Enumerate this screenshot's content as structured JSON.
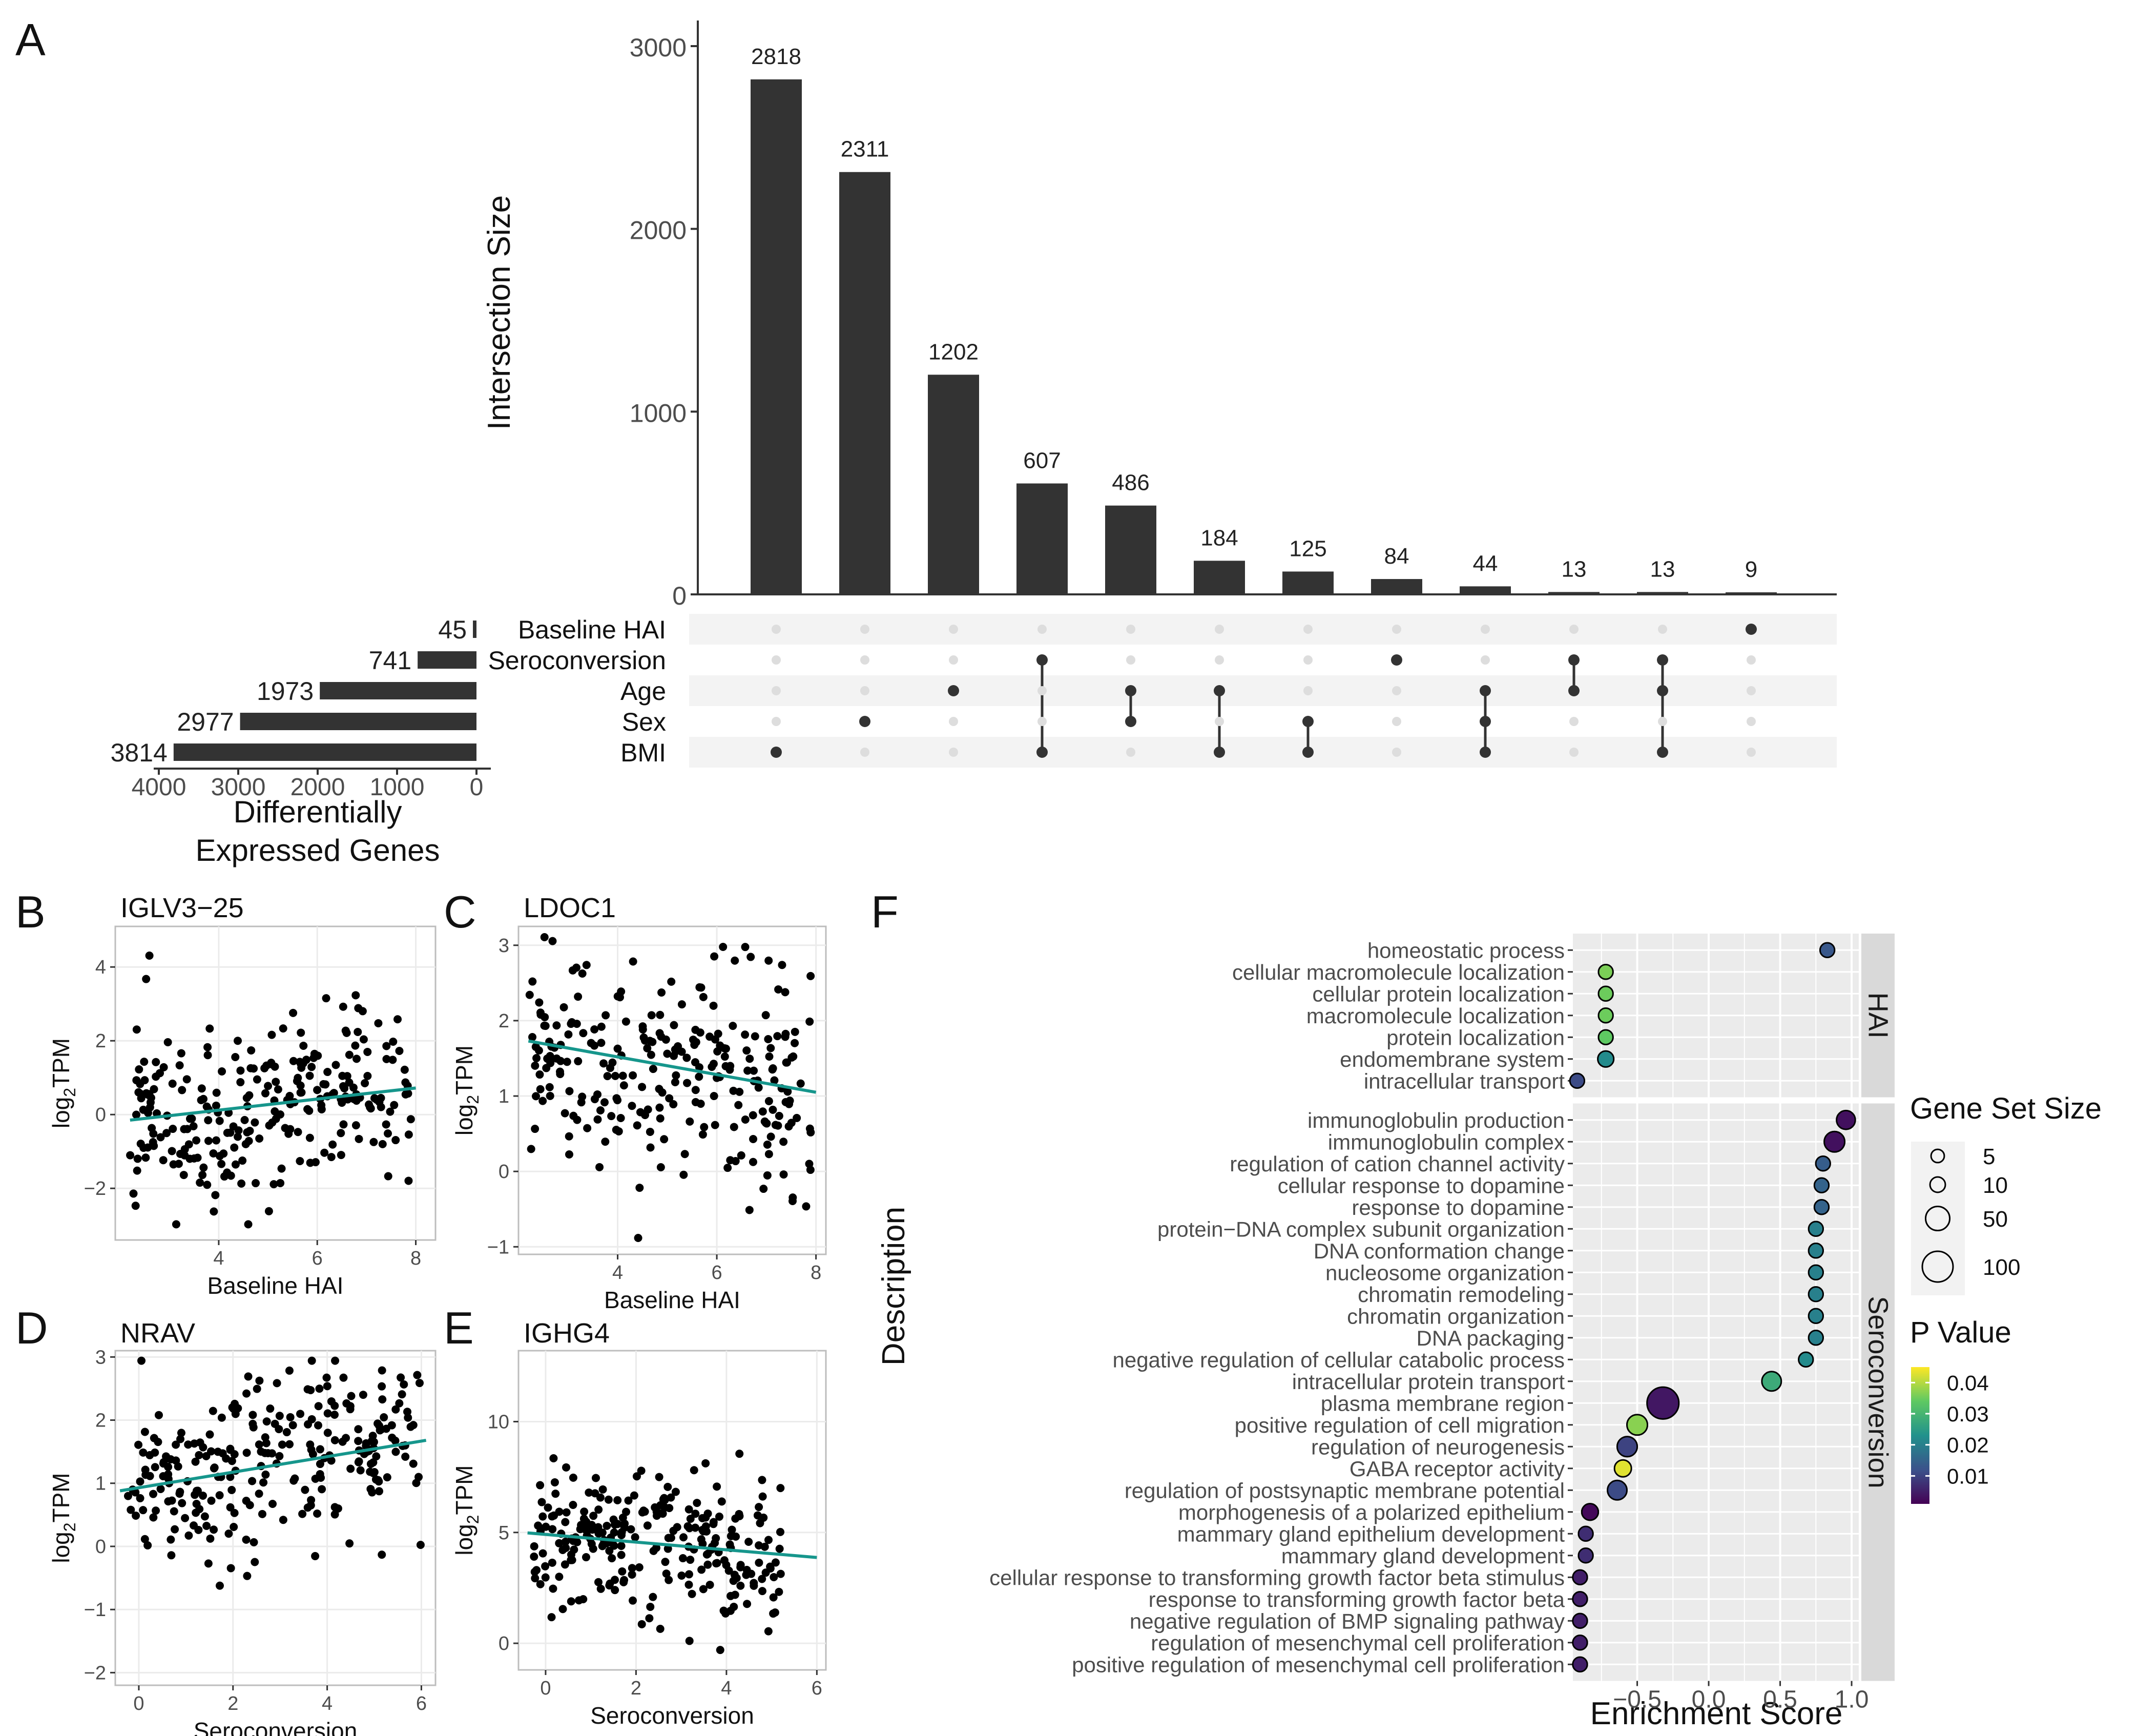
{
  "panels": {
    "a": "A",
    "b": "B",
    "c": "C",
    "d": "D",
    "e": "E",
    "f": "F"
  },
  "colors": {
    "bar": "#333333",
    "dot_active": "#333333",
    "dot_inactive": "#dddddd",
    "stripe": "#f3f3f3",
    "panel_bg": "#ebebeb",
    "strip_bg": "#d9d9d9",
    "grid": "#ffffff",
    "scatter_point": "#000000",
    "fit_line": "#16968c",
    "scatter_border": "#bdbdbd"
  },
  "chart_data": [
    {
      "id": "A",
      "type": "bar",
      "subtype": "upset",
      "ylabel": "Intersection Size",
      "ylim": [
        0,
        3200
      ],
      "yticks": [
        "0",
        "1000",
        "2000",
        "3000"
      ],
      "ytick_values": [
        0,
        1000,
        2000,
        3000
      ],
      "values": [
        2818,
        2311,
        1202,
        607,
        486,
        184,
        125,
        84,
        44,
        13,
        13,
        9
      ],
      "value_labels": [
        "2818",
        "2311",
        "1202",
        "607",
        "486",
        "184",
        "125",
        "84",
        "44",
        "13",
        "13",
        "9"
      ],
      "sets": [
        "Baseline HAI",
        "Seroconversion",
        "Age",
        "Sex",
        "BMI"
      ],
      "memberships": [
        [
          "BMI"
        ],
        [
          "Sex"
        ],
        [
          "Age"
        ],
        [
          "Seroconversion",
          "BMI"
        ],
        [
          "Age",
          "Sex"
        ],
        [
          "Age",
          "BMI"
        ],
        [
          "Sex",
          "BMI"
        ],
        [
          "Seroconversion"
        ],
        [
          "Age",
          "Sex",
          "BMI"
        ],
        [
          "Seroconversion",
          "Age"
        ],
        [
          "Seroconversion",
          "Age",
          "BMI"
        ],
        [
          "Baseline HAI"
        ]
      ],
      "set_sizes": [
        45,
        741,
        1973,
        2977,
        3814
      ],
      "set_size_labels": [
        "45",
        "741",
        "1973",
        "2977",
        "3814"
      ],
      "set_size_axis": {
        "xlim": [
          4000,
          0
        ],
        "ticks": [
          "4000",
          "3000",
          "2000",
          "1000",
          "0"
        ],
        "tick_values": [
          4000,
          3000,
          2000,
          1000,
          0
        ],
        "xlabel_line1": "Differentially",
        "xlabel_line2": "Expressed Genes"
      }
    },
    {
      "id": "B",
      "type": "scatter",
      "title": "IGLV3−25",
      "xlabel": "Baseline HAI",
      "ylabel_main": "log",
      "ylabel_sub": "2",
      "ylabel_tail": "TPM",
      "xlim": [
        1.9,
        8.4
      ],
      "ylim": [
        -3.4,
        5.1
      ],
      "xticks": [
        4,
        6,
        8
      ],
      "xtick_labels": [
        "4",
        "6",
        "8"
      ],
      "yticks": [
        -2,
        0,
        2,
        4
      ],
      "ytick_labels": [
        "−2",
        "0",
        "2",
        "4"
      ],
      "n_points": 260,
      "seed": 11,
      "gen": {
        "xmin": 2.2,
        "xmax": 7.9,
        "a": -0.55,
        "b": 0.16,
        "sd": 1.25
      },
      "fit": {
        "x": [
          2.2,
          8.0
        ],
        "y": [
          -0.15,
          0.72
        ]
      }
    },
    {
      "id": "C",
      "type": "scatter",
      "title": "LDOC1",
      "xlabel": "Baseline HAI",
      "ylabel_main": "log",
      "ylabel_sub": "2",
      "ylabel_tail": "TPM",
      "xlim": [
        2.0,
        8.2
      ],
      "ylim": [
        -1.1,
        3.25
      ],
      "xticks": [
        4,
        6,
        8
      ],
      "xtick_labels": [
        "4",
        "6",
        "8"
      ],
      "yticks": [
        -1,
        0,
        1,
        2,
        3
      ],
      "ytick_labels": [
        "−1",
        "0",
        "1",
        "2",
        "3"
      ],
      "n_points": 260,
      "seed": 23,
      "gen": {
        "xmin": 2.2,
        "xmax": 7.9,
        "a": 2.0,
        "b": -0.12,
        "sd": 0.68
      },
      "fit": {
        "x": [
          2.2,
          8.0
        ],
        "y": [
          1.73,
          1.05
        ]
      }
    },
    {
      "id": "D",
      "type": "scatter",
      "title": "NRAV",
      "xlabel": "Seroconversion",
      "ylabel_main": "log",
      "ylabel_sub": "2",
      "ylabel_tail": "TPM",
      "xlim": [
        -0.5,
        6.3
      ],
      "ylim": [
        -2.2,
        3.1
      ],
      "xticks": [
        0,
        2,
        4,
        6
      ],
      "xtick_labels": [
        "0",
        "2",
        "4",
        "6"
      ],
      "yticks": [
        -2,
        -1,
        0,
        1,
        2,
        3
      ],
      "ytick_labels": [
        "−2",
        "−1",
        "0",
        "1",
        "2",
        "3"
      ],
      "n_points": 260,
      "seed": 37,
      "gen": {
        "xmin": -0.3,
        "xmax": 6.0,
        "a": 0.9,
        "b": 0.13,
        "sd": 0.7
      },
      "fit": {
        "x": [
          -0.4,
          6.1
        ],
        "y": [
          0.88,
          1.68
        ]
      }
    },
    {
      "id": "E",
      "type": "scatter",
      "title": "IGHG4",
      "xlabel": "Seroconversion",
      "ylabel_main": "log",
      "ylabel_sub": "2",
      "ylabel_tail": "TPM",
      "xlim": [
        -0.6,
        6.2
      ],
      "ylim": [
        -1.2,
        13.2
      ],
      "xticks": [
        0,
        2,
        4,
        6
      ],
      "xtick_labels": [
        "0",
        "2",
        "4",
        "6"
      ],
      "yticks": [
        0,
        5,
        10
      ],
      "ytick_labels": [
        "0",
        "5",
        "10"
      ],
      "n_points": 260,
      "seed": 53,
      "gen": {
        "xmin": -0.3,
        "xmax": 5.2,
        "a": 4.9,
        "b": -0.17,
        "sd": 1.6
      },
      "fit": {
        "x": [
          -0.4,
          6.0
        ],
        "y": [
          4.98,
          3.87
        ]
      }
    },
    {
      "id": "F",
      "type": "scatter",
      "subtype": "dotplot",
      "xlabel": "Enrichment Score",
      "ylabel": "Description",
      "xlim": [
        -0.95,
        1.05
      ],
      "xticks": [
        -0.5,
        0.0,
        0.5,
        1.0
      ],
      "xtick_labels": [
        "−0.5",
        "0.0",
        "0.5",
        "1.0"
      ],
      "groups": [
        {
          "name": "HAI",
          "terms": [
            {
              "label": "homeostatic process",
              "score": 0.83,
              "p": 0.013,
              "size": 8
            },
            {
              "label": "cellular macromolecule localization",
              "score": -0.72,
              "p": 0.036,
              "size": 8
            },
            {
              "label": "cellular protein localization",
              "score": -0.72,
              "p": 0.035,
              "size": 8
            },
            {
              "label": "macromolecule localization",
              "score": -0.72,
              "p": 0.035,
              "size": 8
            },
            {
              "label": "protein localization",
              "score": -0.72,
              "p": 0.034,
              "size": 8
            },
            {
              "label": "endomembrane system",
              "score": -0.72,
              "p": 0.022,
              "size": 12
            },
            {
              "label": "intracellular transport",
              "score": -0.92,
              "p": 0.011,
              "size": 8
            }
          ]
        },
        {
          "name": "Seroconversion",
          "terms": [
            {
              "label": "immunoglobulin production",
              "score": 0.96,
              "p": 0.003,
              "size": 22
            },
            {
              "label": "immunoglobulin complex",
              "score": 0.88,
              "p": 0.003,
              "size": 30
            },
            {
              "label": "regulation of cation channel activity",
              "score": 0.8,
              "p": 0.014,
              "size": 8
            },
            {
              "label": "cellular response to dopamine",
              "score": 0.79,
              "p": 0.015,
              "size": 8
            },
            {
              "label": "response to dopamine",
              "score": 0.79,
              "p": 0.015,
              "size": 8
            },
            {
              "label": "protein−DNA complex subunit organization",
              "score": 0.75,
              "p": 0.02,
              "size": 8
            },
            {
              "label": "DNA conformation change",
              "score": 0.75,
              "p": 0.02,
              "size": 8
            },
            {
              "label": "nucleosome organization",
              "score": 0.75,
              "p": 0.02,
              "size": 8
            },
            {
              "label": "chromatin remodeling",
              "score": 0.75,
              "p": 0.02,
              "size": 8
            },
            {
              "label": "chromatin organization",
              "score": 0.75,
              "p": 0.02,
              "size": 8
            },
            {
              "label": "DNA packaging",
              "score": 0.75,
              "p": 0.02,
              "size": 8
            },
            {
              "label": "negative regulation of cellular catabolic process",
              "score": 0.68,
              "p": 0.022,
              "size": 8
            },
            {
              "label": "intracellular protein transport",
              "score": 0.44,
              "p": 0.028,
              "size": 25
            },
            {
              "label": "plasma membrane region",
              "score": -0.32,
              "p": 0.004,
              "size": 110
            },
            {
              "label": "positive regulation of cell migration",
              "score": -0.5,
              "p": 0.037,
              "size": 30
            },
            {
              "label": "regulation of neurogenesis",
              "score": -0.57,
              "p": 0.01,
              "size": 28
            },
            {
              "label": "GABA receptor activity",
              "score": -0.6,
              "p": 0.043,
              "size": 15
            },
            {
              "label": "regulation of postsynaptic membrane potential",
              "score": -0.64,
              "p": 0.011,
              "size": 25
            },
            {
              "label": "morphogenesis of a polarized epithelium",
              "score": -0.83,
              "p": 0.002,
              "size": 14
            },
            {
              "label": "mammary gland epithelium development",
              "score": -0.86,
              "p": 0.007,
              "size": 8
            },
            {
              "label": "mammary gland development",
              "score": -0.86,
              "p": 0.007,
              "size": 8
            },
            {
              "label": "cellular response to transforming growth factor beta stimulus",
              "score": -0.9,
              "p": 0.005,
              "size": 8
            },
            {
              "label": "response to transforming growth factor beta",
              "score": -0.9,
              "p": 0.005,
              "size": 8
            },
            {
              "label": "negative regulation of BMP signaling pathway",
              "score": -0.9,
              "p": 0.005,
              "size": 8
            },
            {
              "label": "regulation of mesenchymal cell proliferation",
              "score": -0.9,
              "p": 0.005,
              "size": 8
            },
            {
              "label": "positive regulation of mesenchymal cell proliferation",
              "score": -0.9,
              "p": 0.005,
              "size": 8
            }
          ]
        }
      ],
      "size_legend": {
        "title": "Gene Set Size",
        "values": [
          5,
          10,
          50,
          100
        ],
        "labels": [
          "5",
          "10",
          "50",
          "100"
        ]
      },
      "color_legend": {
        "title": "P Value",
        "min": 0.001,
        "max": 0.045,
        "values": [
          0.04,
          0.03,
          0.02,
          0.01
        ],
        "labels": [
          "0.04",
          "0.03",
          "0.02",
          "0.01"
        ]
      }
    }
  ]
}
